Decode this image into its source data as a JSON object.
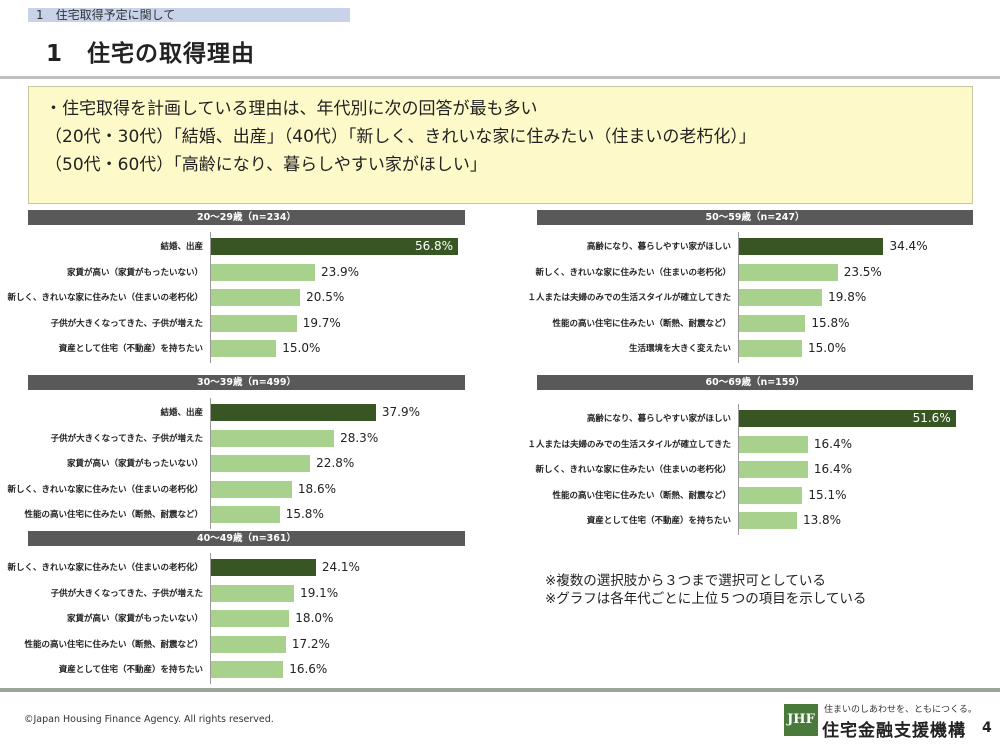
{
  "section_tag": "1　住宅取得予定に関して",
  "page_title": "1　住宅の取得理由",
  "summary_lines": [
    "・住宅取得を計画している理由は、年代別に次の回答が最も多い",
    "（20代・30代）「結婚、出産」（40代）「新しく、きれいな家に住みたい（住まいの老朽化）」",
    "（50代・60代）「高齢になり、暮らしやすい家がほしい」"
  ],
  "chart_data": [
    {
      "type": "bar",
      "orientation": "horizontal",
      "title": "20〜29歳（n=234）",
      "categories": [
        "結婚、出産",
        "家賃が高い（家賃がもったいない）",
        "新しく、きれいな家に住みたい（住まいの老朽化）",
        "子供が大きくなってきた、子供が増えた",
        "資産として住宅（不動産）を持ちたい"
      ],
      "values": [
        56.8,
        23.9,
        20.5,
        19.7,
        15.0
      ],
      "value_labels": [
        "56.8%",
        "23.9%",
        "20.5%",
        "19.7%",
        "15.0%"
      ]
    },
    {
      "type": "bar",
      "orientation": "horizontal",
      "title": "30〜39歳（n=499）",
      "categories": [
        "結婚、出産",
        "子供が大きくなってきた、子供が増えた",
        "家賃が高い（家賃がもったいない）",
        "新しく、きれいな家に住みたい（住まいの老朽化）",
        "性能の高い住宅に住みたい（断熱、耐震など）"
      ],
      "values": [
        37.9,
        28.3,
        22.8,
        18.6,
        15.8
      ],
      "value_labels": [
        "37.9%",
        "28.3%",
        "22.8%",
        "18.6%",
        "15.8%"
      ]
    },
    {
      "type": "bar",
      "orientation": "horizontal",
      "title": "40〜49歳（n=361）",
      "categories": [
        "新しく、きれいな家に住みたい（住まいの老朽化）",
        "子供が大きくなってきた、子供が増えた",
        "家賃が高い（家賃がもったいない）",
        "性能の高い住宅に住みたい（断熱、耐震など）",
        "資産として住宅（不動産）を持ちたい"
      ],
      "values": [
        24.1,
        19.1,
        18.0,
        17.2,
        16.6
      ],
      "value_labels": [
        "24.1%",
        "19.1%",
        "18.0%",
        "17.2%",
        "16.6%"
      ]
    },
    {
      "type": "bar",
      "orientation": "horizontal",
      "title": "50〜59歳（n=247）",
      "categories": [
        "高齢になり、暮らしやすい家がほしい",
        "新しく、きれいな家に住みたい（住まいの老朽化）",
        "１人または夫婦のみでの生活スタイルが確立してきた",
        "性能の高い住宅に住みたい（断熱、耐震など）",
        "生活環境を大きく変えたい"
      ],
      "values": [
        34.4,
        23.5,
        19.8,
        15.8,
        15.0
      ],
      "value_labels": [
        "34.4%",
        "23.5%",
        "19.8%",
        "15.8%",
        "15.0%"
      ]
    },
    {
      "type": "bar",
      "orientation": "horizontal",
      "title": "60〜69歳（n=159）",
      "categories": [
        "高齢になり、暮らしやすい家がほしい",
        "１人または夫婦のみでの生活スタイルが確立してきた",
        "新しく、きれいな家に住みたい（住まいの老朽化）",
        "性能の高い住宅に住みたい（断熱、耐震など）",
        "資産として住宅（不動産）を持ちたい"
      ],
      "values": [
        51.6,
        16.4,
        16.4,
        15.1,
        13.8
      ],
      "value_labels": [
        "51.6%",
        "16.4%",
        "16.4%",
        "15.1%",
        "13.8%"
      ]
    }
  ],
  "notes": [
    "※複数の選択肢から３つまで選択可としている",
    "※グラフは各年代ごとに上位５つの項目を示している"
  ],
  "footer": {
    "copyright": "©Japan Housing Finance Agency. All rights reserved.",
    "logo_mark": "JHF",
    "tagline": "住まいのしあわせを、ともにつくる。",
    "org_name": "住宅金融支援機構",
    "page_number": "4"
  },
  "colors": {
    "top_bar": "#375623",
    "other_bar": "#a9d18e",
    "header": "#595959",
    "summary_bg": "#fdf9c9"
  }
}
